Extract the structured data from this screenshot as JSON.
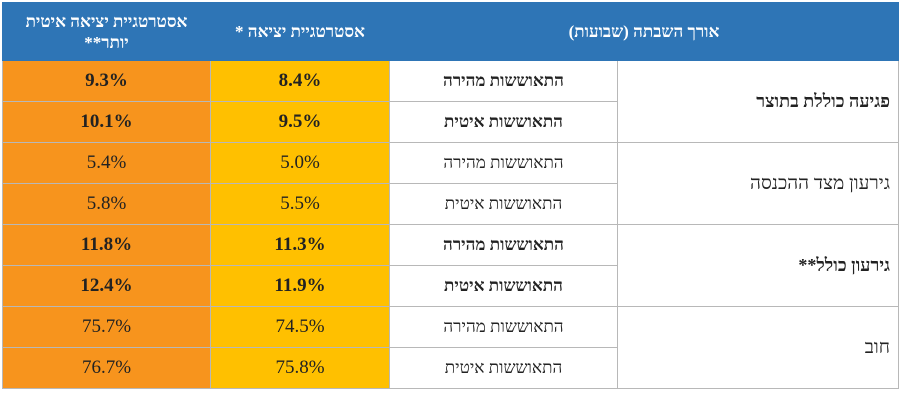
{
  "header": {
    "metric": "אורך השבתה (שבועות)",
    "production_strategy": "אסטרטגיית יציאה *",
    "slow_strategy": "אסטרטגיית יציאה איטית יותר**"
  },
  "colors": {
    "header_bg": "#2e75b6",
    "production_col": "#ffc000",
    "slow_col": "#f7941d"
  },
  "groups": [
    {
      "metric": "פגיעה כוללת בתוצר",
      "bold": true,
      "rows": [
        {
          "recovery": "התאוששות מהירה",
          "production": "8.4%",
          "slow": "9.3%"
        },
        {
          "recovery": "התאוששות איטית",
          "production": "9.5%",
          "slow": "10.1%"
        }
      ]
    },
    {
      "metric": "גירעון מצד ההכנסה",
      "bold": false,
      "rows": [
        {
          "recovery": "התאוששות מהירה",
          "production": "5.0%",
          "slow": "5.4%"
        },
        {
          "recovery": "התאוששות איטית",
          "production": "5.5%",
          "slow": "5.8%"
        }
      ]
    },
    {
      "metric": "גירעון כולל**",
      "bold": true,
      "rows": [
        {
          "recovery": "התאוששות מהירה",
          "production": "11.3%",
          "slow": "11.8%"
        },
        {
          "recovery": "התאוששות איטית",
          "production": "11.9%",
          "slow": "12.4%"
        }
      ]
    },
    {
      "metric": "חוב",
      "bold": false,
      "rows": [
        {
          "recovery": "התאוששות מהירה",
          "production": "74.5%",
          "slow": "75.7%"
        },
        {
          "recovery": "התאוששות איטית",
          "production": "75.8%",
          "slow": "76.7%"
        }
      ]
    }
  ]
}
